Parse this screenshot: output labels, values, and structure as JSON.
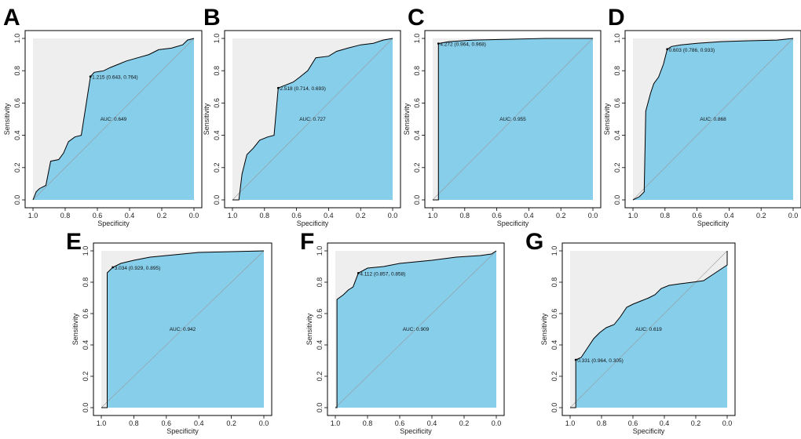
{
  "colors": {
    "fill": "#87ceeb",
    "background": "#eeeeee",
    "curve": "#000000",
    "diagonal": "#999999"
  },
  "chart_data": [
    {
      "panel": "A",
      "type": "line",
      "xlabel": "Specificity",
      "ylabel": "Sensitivity",
      "xlim": [
        1.0,
        0.0
      ],
      "ylim": [
        0.0,
        1.0
      ],
      "xticks": [
        "1.0",
        "0.8",
        "0.6",
        "0.4",
        "0.2",
        "0.0"
      ],
      "yticks": [
        "0.0",
        "0.2",
        "0.4",
        "0.6",
        "0.8",
        "1.0"
      ],
      "auc_label": "AUC: 0.649",
      "threshold_label": "1.215 (0.643, 0.764)",
      "threshold_point": {
        "specificity": 0.643,
        "sensitivity": 0.764
      },
      "roc": [
        [
          1,
          0
        ],
        [
          0.98,
          0.05
        ],
        [
          0.96,
          0.07
        ],
        [
          0.92,
          0.09
        ],
        [
          0.89,
          0.24
        ],
        [
          0.84,
          0.25
        ],
        [
          0.81,
          0.29
        ],
        [
          0.78,
          0.36
        ],
        [
          0.74,
          0.39
        ],
        [
          0.7,
          0.4
        ],
        [
          0.643,
          0.764
        ],
        [
          0.62,
          0.79
        ],
        [
          0.56,
          0.8
        ],
        [
          0.52,
          0.82
        ],
        [
          0.47,
          0.84
        ],
        [
          0.42,
          0.86
        ],
        [
          0.35,
          0.88
        ],
        [
          0.28,
          0.9
        ],
        [
          0.22,
          0.93
        ],
        [
          0.14,
          0.94
        ],
        [
          0.07,
          0.96
        ],
        [
          0.04,
          0.99
        ],
        [
          0,
          1
        ]
      ]
    },
    {
      "panel": "B",
      "type": "line",
      "xlabel": "Specificity",
      "ylabel": "Sensitivity",
      "xlim": [
        1.0,
        0.0
      ],
      "ylim": [
        0.0,
        1.0
      ],
      "xticks": [
        "1.0",
        "0.8",
        "0.6",
        "0.4",
        "0.2",
        "0.0"
      ],
      "yticks": [
        "0.0",
        "0.2",
        "0.4",
        "0.6",
        "0.8",
        "1.0"
      ],
      "auc_label": "AUC: 0.727",
      "threshold_label": "2.518 (0.714, 0.693)",
      "threshold_point": {
        "specificity": 0.714,
        "sensitivity": 0.693
      },
      "roc": [
        [
          1,
          0
        ],
        [
          0.96,
          0.0
        ],
        [
          0.94,
          0.16
        ],
        [
          0.91,
          0.28
        ],
        [
          0.87,
          0.32
        ],
        [
          0.83,
          0.37
        ],
        [
          0.78,
          0.39
        ],
        [
          0.74,
          0.4
        ],
        [
          0.714,
          0.693
        ],
        [
          0.67,
          0.71
        ],
        [
          0.62,
          0.73
        ],
        [
          0.58,
          0.76
        ],
        [
          0.53,
          0.8
        ],
        [
          0.48,
          0.88
        ],
        [
          0.4,
          0.89
        ],
        [
          0.35,
          0.92
        ],
        [
          0.28,
          0.94
        ],
        [
          0.2,
          0.96
        ],
        [
          0.12,
          0.97
        ],
        [
          0.06,
          0.99
        ],
        [
          0,
          1
        ]
      ]
    },
    {
      "panel": "C",
      "type": "line",
      "xlabel": "Specificity",
      "ylabel": "Sensitivity",
      "xlim": [
        1.0,
        0.0
      ],
      "ylim": [
        0.0,
        1.0
      ],
      "xticks": [
        "1.0",
        "0.8",
        "0.6",
        "0.4",
        "0.2",
        "0.0"
      ],
      "yticks": [
        "0.0",
        "0.2",
        "0.4",
        "0.6",
        "0.8",
        "1.0"
      ],
      "auc_label": "AUC: 0.955",
      "threshold_label": "4.272 (0.964, 0.968)",
      "threshold_point": {
        "specificity": 0.964,
        "sensitivity": 0.968
      },
      "roc": [
        [
          1,
          0
        ],
        [
          0.964,
          0.0
        ],
        [
          0.964,
          0.968
        ],
        [
          0.9,
          0.98
        ],
        [
          0.75,
          0.99
        ],
        [
          0.5,
          0.995
        ],
        [
          0.3,
          1.0
        ],
        [
          0,
          1
        ]
      ]
    },
    {
      "panel": "D",
      "type": "line",
      "xlabel": "Specificity",
      "ylabel": "Sensitivity",
      "xlim": [
        1.0,
        0.0
      ],
      "ylim": [
        0.0,
        1.0
      ],
      "xticks": [
        "1.0",
        "0.8",
        "0.6",
        "0.4",
        "0.2",
        "0.0"
      ],
      "yticks": [
        "0.0",
        "0.2",
        "0.4",
        "0.6",
        "0.8",
        "1.0"
      ],
      "auc_label": "AUC: 0.868",
      "threshold_label": "0.603 (0.786, 0.933)",
      "threshold_point": {
        "specificity": 0.786,
        "sensitivity": 0.933
      },
      "roc": [
        [
          1,
          0
        ],
        [
          0.96,
          0.02
        ],
        [
          0.93,
          0.05
        ],
        [
          0.92,
          0.55
        ],
        [
          0.89,
          0.66
        ],
        [
          0.87,
          0.72
        ],
        [
          0.84,
          0.76
        ],
        [
          0.81,
          0.84
        ],
        [
          0.786,
          0.933
        ],
        [
          0.76,
          0.95
        ],
        [
          0.7,
          0.96
        ],
        [
          0.6,
          0.97
        ],
        [
          0.45,
          0.98
        ],
        [
          0.3,
          0.985
        ],
        [
          0.1,
          0.99
        ],
        [
          0,
          1
        ]
      ]
    },
    {
      "panel": "E",
      "type": "line",
      "xlabel": "Specificity",
      "ylabel": "Sensitivity",
      "xlim": [
        1.0,
        0.0
      ],
      "ylim": [
        0.0,
        1.0
      ],
      "xticks": [
        "1.0",
        "0.8",
        "0.6",
        "0.4",
        "0.2",
        "0.0"
      ],
      "yticks": [
        "0.0",
        "0.2",
        "0.4",
        "0.6",
        "0.8",
        "1.0"
      ],
      "auc_label": "AUC: 0.942",
      "threshold_label": "3.034 (0.929, 0.895)",
      "threshold_point": {
        "specificity": 0.929,
        "sensitivity": 0.895
      },
      "roc": [
        [
          1,
          0
        ],
        [
          0.964,
          0.0
        ],
        [
          0.964,
          0.86
        ],
        [
          0.929,
          0.895
        ],
        [
          0.88,
          0.92
        ],
        [
          0.8,
          0.94
        ],
        [
          0.7,
          0.96
        ],
        [
          0.55,
          0.975
        ],
        [
          0.4,
          0.99
        ],
        [
          0.2,
          0.995
        ],
        [
          0,
          1
        ]
      ]
    },
    {
      "panel": "F",
      "type": "line",
      "xlabel": "Specificity",
      "ylabel": "Sensitivity",
      "xlim": [
        1.0,
        0.0
      ],
      "ylim": [
        0.0,
        1.0
      ],
      "xticks": [
        "1.0",
        "0.8",
        "0.6",
        "0.4",
        "0.2",
        "0.0"
      ],
      "yticks": [
        "0.0",
        "0.2",
        "0.4",
        "0.6",
        "0.8",
        "1.0"
      ],
      "auc_label": "AUC: 0.909",
      "threshold_label": "4.112 (0.857, 0.858)",
      "threshold_point": {
        "specificity": 0.857,
        "sensitivity": 0.858
      },
      "roc": [
        [
          1,
          0
        ],
        [
          0.99,
          0.0
        ],
        [
          0.99,
          0.69
        ],
        [
          0.95,
          0.72
        ],
        [
          0.92,
          0.75
        ],
        [
          0.89,
          0.77
        ],
        [
          0.857,
          0.858
        ],
        [
          0.8,
          0.89
        ],
        [
          0.7,
          0.9
        ],
        [
          0.6,
          0.92
        ],
        [
          0.5,
          0.93
        ],
        [
          0.4,
          0.94
        ],
        [
          0.25,
          0.96
        ],
        [
          0.1,
          0.97
        ],
        [
          0.03,
          0.98
        ],
        [
          0,
          1
        ]
      ]
    },
    {
      "panel": "G",
      "type": "line",
      "xlabel": "Specificity",
      "ylabel": "Sensitivity",
      "xlim": [
        1.0,
        0.0
      ],
      "ylim": [
        0.0,
        1.0
      ],
      "xticks": [
        "1.0",
        "0.8",
        "0.6",
        "0.4",
        "0.2",
        "0.0"
      ],
      "yticks": [
        "0.0",
        "0.2",
        "0.4",
        "0.6",
        "0.8",
        "1.0"
      ],
      "auc_label": "AUC: 0.619",
      "threshold_label": "0.331 (0.964, 0.305)",
      "threshold_point": {
        "specificity": 0.964,
        "sensitivity": 0.305
      },
      "roc": [
        [
          1,
          0
        ],
        [
          0.964,
          0.0
        ],
        [
          0.964,
          0.305
        ],
        [
          0.93,
          0.32
        ],
        [
          0.89,
          0.38
        ],
        [
          0.85,
          0.44
        ],
        [
          0.81,
          0.48
        ],
        [
          0.77,
          0.51
        ],
        [
          0.72,
          0.53
        ],
        [
          0.68,
          0.58
        ],
        [
          0.64,
          0.64
        ],
        [
          0.6,
          0.66
        ],
        [
          0.55,
          0.68
        ],
        [
          0.5,
          0.7
        ],
        [
          0.46,
          0.72
        ],
        [
          0.42,
          0.76
        ],
        [
          0.37,
          0.78
        ],
        [
          0.3,
          0.79
        ],
        [
          0.22,
          0.8
        ],
        [
          0.15,
          0.81
        ],
        [
          0.09,
          0.85
        ],
        [
          0.03,
          0.89
        ],
        [
          0.0,
          0.91
        ],
        [
          0,
          1
        ]
      ]
    }
  ]
}
